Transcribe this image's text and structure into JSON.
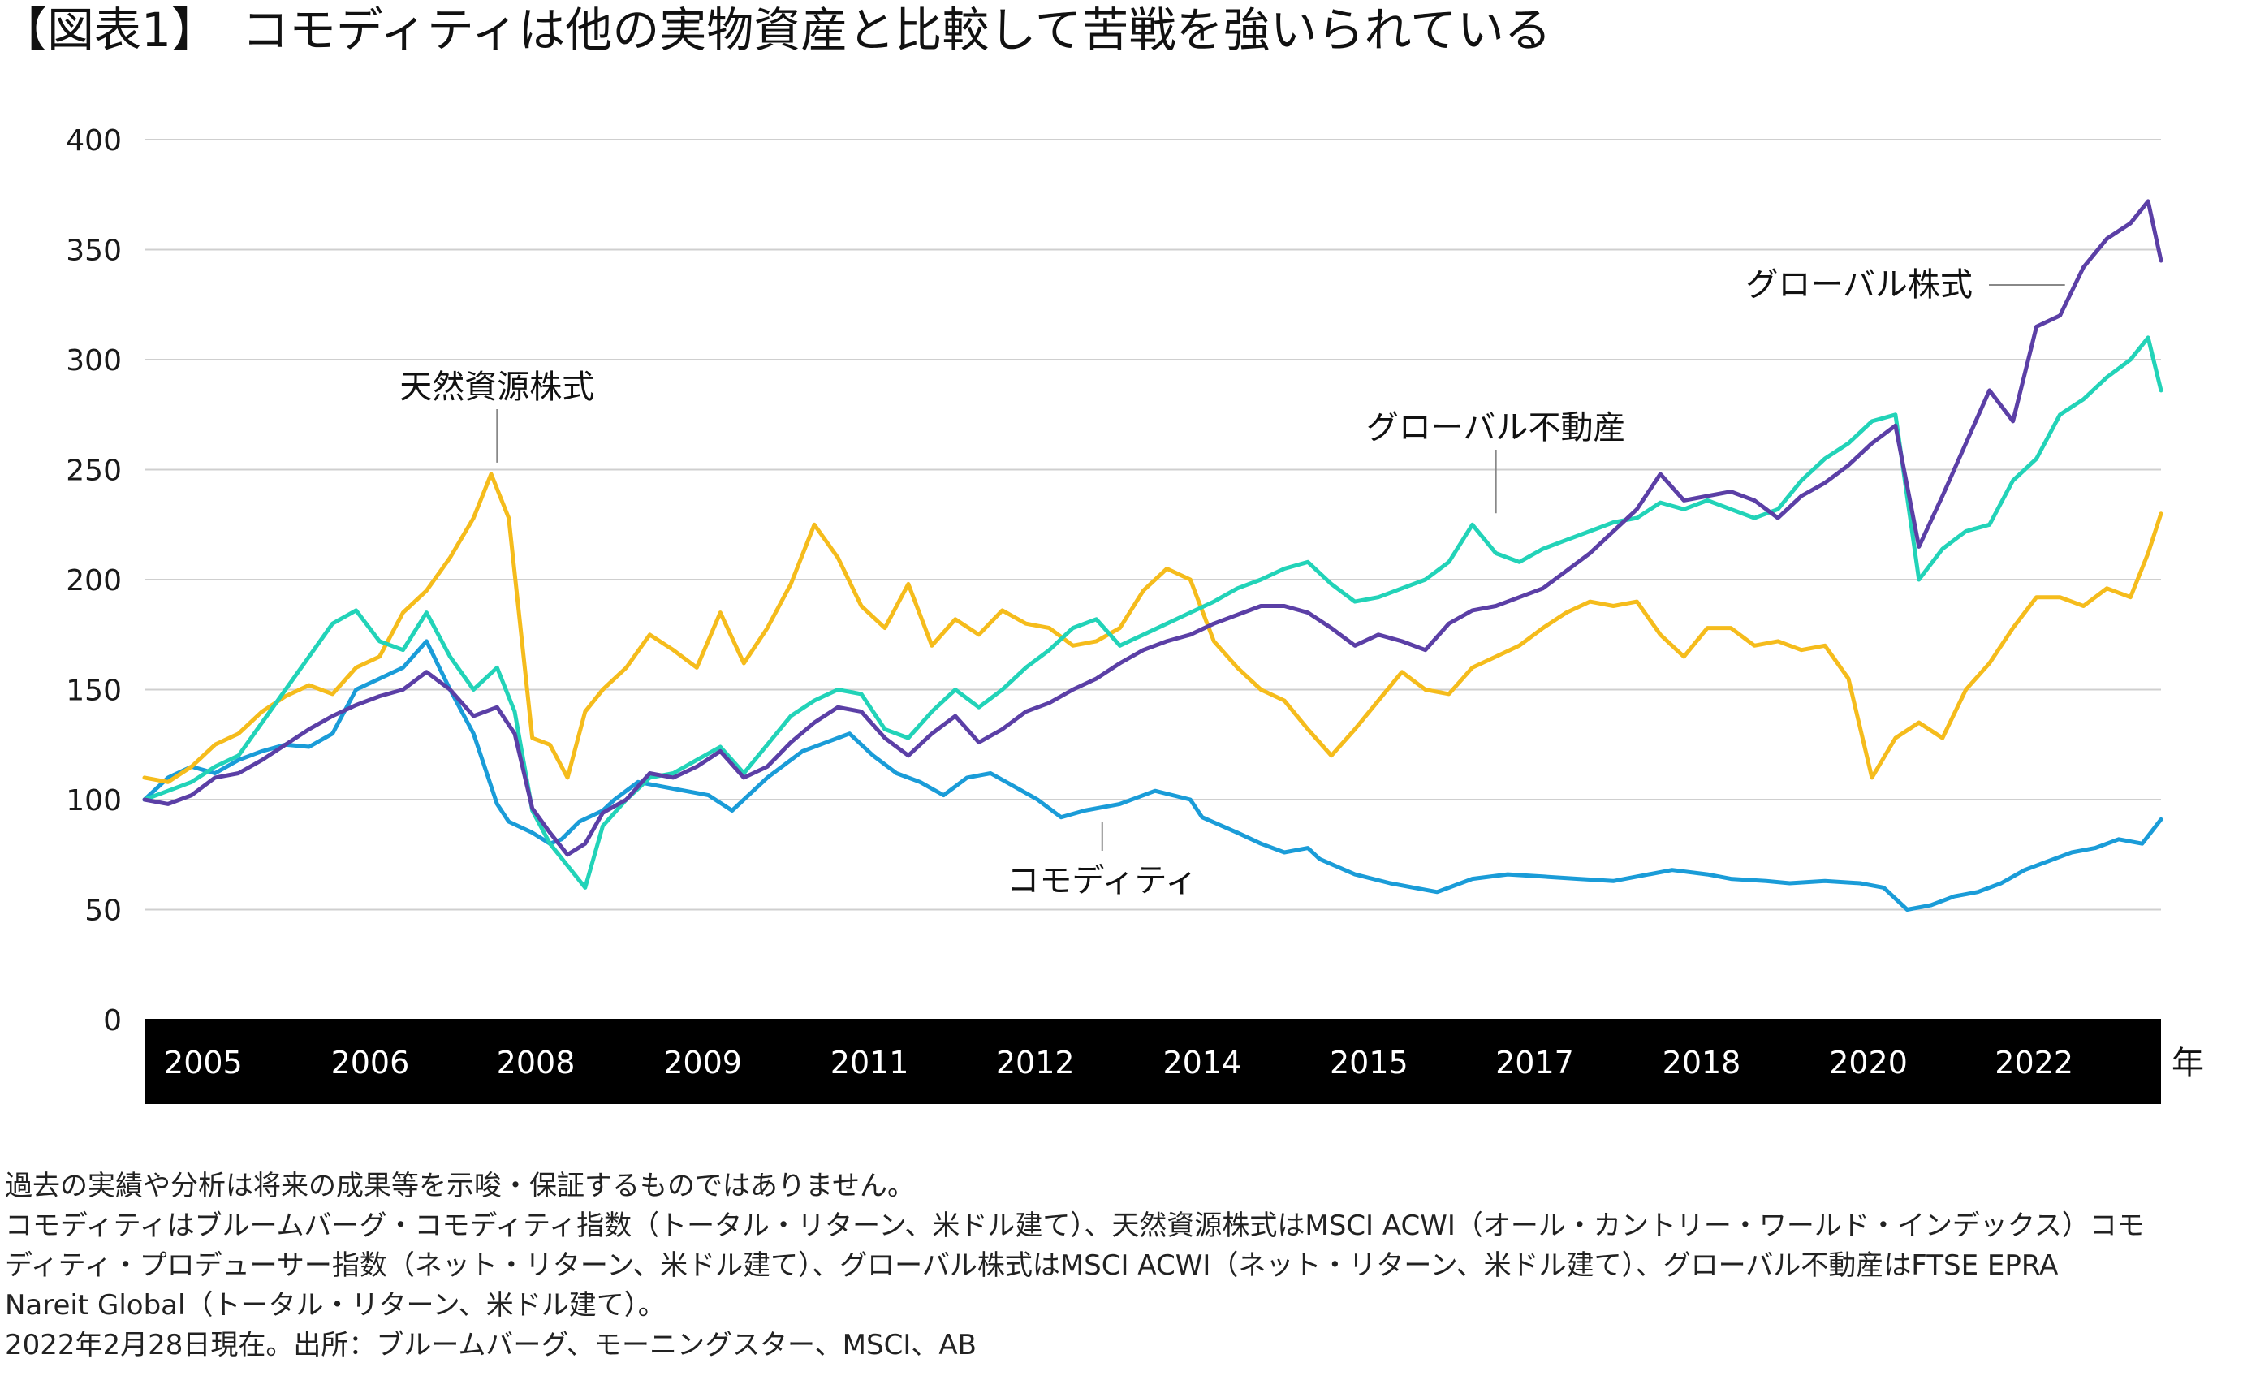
{
  "header": {
    "title": "【図表1】　コモディティは他の実物資産と比較して苦戦を強いられている"
  },
  "notes": [
    "過去の実績や分析は将来の成果等を示唆・保証するものではありません。",
    "コモディティはブルームバーグ・コモディティ指数（トータル・リターン、米ドル建て）、天然資源株式はMSCI ACWI（オール・カントリー・ワールド・インデックス）コモ",
    "ディティ・プロデューサー指数（ネット・リターン、米ドル建て）、グローバル株式はMSCI ACWI（ネット・リターン、米ドル建て）、グローバル不動産はFTSE EPRA",
    "Nareit Global（トータル・リターン、米ドル建て）。",
    "2022年2月28日現在。出所：ブルームバーグ、モーニングスター、MSCI、AB"
  ],
  "colors": {
    "commodity": "#1a9cd8",
    "natural_resources": "#f5bc1c",
    "global_equity": "#5b3fa6",
    "global_reit": "#22d3b8",
    "axis_band": "#000000",
    "gridline": "#cfcfcf"
  },
  "chart_data": {
    "type": "line",
    "title": "コモディティは他の実物資産と比較して苦戦を強いられている",
    "xlabel": "年",
    "ylabel": "",
    "ylim": [
      0,
      400
    ],
    "yticks": [
      0,
      50,
      100,
      150,
      200,
      250,
      300,
      350,
      400
    ],
    "grid": true,
    "x_start": 2005.0,
    "x_end": 2022.16,
    "xtick_labels": [
      "2005",
      "2006",
      "2008",
      "2009",
      "2011",
      "2012",
      "2014",
      "2015",
      "2017",
      "2018",
      "2020",
      "2022"
    ],
    "xtick_positions": [
      2005.5,
      2006.92,
      2008.33,
      2009.75,
      2011.17,
      2012.58,
      2014.0,
      2015.42,
      2016.83,
      2018.25,
      2019.67,
      2021.08
    ],
    "unit_label": "年",
    "series": [
      {
        "name": "コモディティ",
        "color_key": "commodity",
        "x": [
          2005.0,
          2005.2,
          2005.4,
          2005.6,
          2005.8,
          2006.0,
          2006.2,
          2006.4,
          2006.6,
          2006.8,
          2007.0,
          2007.2,
          2007.4,
          2007.6,
          2007.8,
          2008.0,
          2008.1,
          2008.3,
          2008.45,
          2008.55,
          2008.7,
          2008.9,
          2009.0,
          2009.2,
          2009.5,
          2009.8,
          2010.0,
          2010.3,
          2010.6,
          2010.9,
          2011.0,
          2011.2,
          2011.4,
          2011.6,
          2011.8,
          2012.0,
          2012.2,
          2012.4,
          2012.6,
          2012.8,
          2013.0,
          2013.3,
          2013.6,
          2013.9,
          2014.0,
          2014.3,
          2014.5,
          2014.7,
          2014.9,
          2015.0,
          2015.3,
          2015.6,
          2015.8,
          2016.0,
          2016.3,
          2016.6,
          2016.9,
          2017.2,
          2017.5,
          2017.8,
          2018.0,
          2018.3,
          2018.5,
          2018.8,
          2019.0,
          2019.3,
          2019.6,
          2019.8,
          2020.0,
          2020.2,
          2020.4,
          2020.6,
          2020.8,
          2021.0,
          2021.2,
          2021.4,
          2021.6,
          2021.8,
          2022.0,
          2022.16
        ],
        "values": [
          100,
          110,
          115,
          112,
          118,
          122,
          125,
          124,
          130,
          150,
          155,
          160,
          172,
          150,
          130,
          98,
          90,
          85,
          80,
          82,
          90,
          95,
          100,
          108,
          105,
          102,
          95,
          110,
          122,
          128,
          130,
          120,
          112,
          108,
          102,
          110,
          112,
          106,
          100,
          92,
          95,
          98,
          104,
          100,
          92,
          85,
          80,
          76,
          78,
          73,
          66,
          62,
          60,
          58,
          64,
          66,
          65,
          64,
          63,
          66,
          68,
          66,
          64,
          63,
          62,
          63,
          62,
          60,
          50,
          52,
          56,
          58,
          62,
          68,
          72,
          76,
          78,
          82,
          80,
          91
        ]
      },
      {
        "name": "天然資源株式",
        "color_key": "natural_resources",
        "x": [
          2005.0,
          2005.2,
          2005.4,
          2005.6,
          2005.8,
          2006.0,
          2006.2,
          2006.4,
          2006.6,
          2006.8,
          2007.0,
          2007.2,
          2007.4,
          2007.6,
          2007.8,
          2007.95,
          2008.1,
          2008.3,
          2008.45,
          2008.6,
          2008.75,
          2008.9,
          2009.1,
          2009.3,
          2009.5,
          2009.7,
          2009.9,
          2010.1,
          2010.3,
          2010.5,
          2010.7,
          2010.9,
          2011.1,
          2011.3,
          2011.5,
          2011.7,
          2011.9,
          2012.1,
          2012.3,
          2012.5,
          2012.7,
          2012.9,
          2013.1,
          2013.3,
          2013.5,
          2013.7,
          2013.9,
          2014.1,
          2014.3,
          2014.5,
          2014.7,
          2014.9,
          2015.1,
          2015.3,
          2015.5,
          2015.7,
          2015.9,
          2016.1,
          2016.3,
          2016.5,
          2016.7,
          2016.9,
          2017.1,
          2017.3,
          2017.5,
          2017.7,
          2017.9,
          2018.1,
          2018.3,
          2018.5,
          2018.7,
          2018.9,
          2019.1,
          2019.3,
          2019.5,
          2019.7,
          2019.9,
          2020.1,
          2020.3,
          2020.5,
          2020.7,
          2020.9,
          2021.1,
          2021.3,
          2021.5,
          2021.7,
          2021.9,
          2022.05,
          2022.16
        ],
        "values": [
          110,
          108,
          115,
          125,
          130,
          140,
          147,
          152,
          148,
          160,
          165,
          185,
          195,
          210,
          228,
          248,
          228,
          128,
          125,
          110,
          140,
          150,
          160,
          175,
          168,
          160,
          185,
          162,
          178,
          198,
          225,
          210,
          188,
          178,
          198,
          170,
          182,
          175,
          186,
          180,
          178,
          170,
          172,
          178,
          195,
          205,
          200,
          172,
          160,
          150,
          145,
          132,
          120,
          132,
          145,
          158,
          150,
          148,
          160,
          165,
          170,
          178,
          185,
          190,
          188,
          190,
          175,
          165,
          178,
          178,
          170,
          172,
          168,
          170,
          155,
          110,
          128,
          135,
          128,
          150,
          162,
          178,
          192,
          192,
          188,
          196,
          192,
          212,
          230
        ]
      },
      {
        "name": "グローバル株式",
        "color_key": "global_equity",
        "x": [
          2005.0,
          2005.2,
          2005.4,
          2005.6,
          2005.8,
          2006.0,
          2006.2,
          2006.4,
          2006.6,
          2006.8,
          2007.0,
          2007.2,
          2007.4,
          2007.6,
          2007.8,
          2008.0,
          2008.15,
          2008.3,
          2008.45,
          2008.6,
          2008.75,
          2008.9,
          2009.1,
          2009.3,
          2009.5,
          2009.7,
          2009.9,
          2010.1,
          2010.3,
          2010.5,
          2010.7,
          2010.9,
          2011.1,
          2011.3,
          2011.5,
          2011.7,
          2011.9,
          2012.1,
          2012.3,
          2012.5,
          2012.7,
          2012.9,
          2013.1,
          2013.3,
          2013.5,
          2013.7,
          2013.9,
          2014.1,
          2014.3,
          2014.5,
          2014.7,
          2014.9,
          2015.1,
          2015.3,
          2015.5,
          2015.7,
          2015.9,
          2016.1,
          2016.3,
          2016.5,
          2016.7,
          2016.9,
          2017.1,
          2017.3,
          2017.5,
          2017.7,
          2017.9,
          2018.1,
          2018.3,
          2018.5,
          2018.7,
          2018.9,
          2019.1,
          2019.3,
          2019.5,
          2019.7,
          2019.9,
          2020.1,
          2020.3,
          2020.5,
          2020.7,
          2020.9,
          2021.1,
          2021.3,
          2021.5,
          2021.7,
          2021.9,
          2022.05,
          2022.16
        ],
        "values": [
          100,
          98,
          102,
          110,
          112,
          118,
          125,
          132,
          138,
          143,
          147,
          150,
          158,
          150,
          138,
          142,
          130,
          96,
          85,
          75,
          80,
          94,
          100,
          112,
          110,
          115,
          122,
          110,
          115,
          126,
          135,
          142,
          140,
          128,
          120,
          130,
          138,
          126,
          132,
          140,
          144,
          150,
          155,
          162,
          168,
          172,
          175,
          180,
          184,
          188,
          188,
          185,
          178,
          170,
          175,
          172,
          168,
          180,
          186,
          188,
          192,
          196,
          204,
          212,
          222,
          232,
          248,
          236,
          238,
          240,
          236,
          228,
          238,
          244,
          252,
          262,
          270,
          215,
          238,
          262,
          286,
          272,
          315,
          320,
          342,
          355,
          362,
          372,
          345
        ]
      },
      {
        "name": "グローバル不動産",
        "color_key": "global_reit",
        "x": [
          2005.0,
          2005.2,
          2005.4,
          2005.6,
          2005.8,
          2006.0,
          2006.2,
          2006.4,
          2006.6,
          2006.8,
          2007.0,
          2007.2,
          2007.4,
          2007.6,
          2007.8,
          2008.0,
          2008.15,
          2008.3,
          2008.45,
          2008.6,
          2008.75,
          2008.9,
          2009.1,
          2009.3,
          2009.5,
          2009.7,
          2009.9,
          2010.1,
          2010.3,
          2010.5,
          2010.7,
          2010.9,
          2011.1,
          2011.3,
          2011.5,
          2011.7,
          2011.9,
          2012.1,
          2012.3,
          2012.5,
          2012.7,
          2012.9,
          2013.1,
          2013.3,
          2013.5,
          2013.7,
          2013.9,
          2014.1,
          2014.3,
          2014.5,
          2014.7,
          2014.9,
          2015.1,
          2015.3,
          2015.5,
          2015.7,
          2015.9,
          2016.1,
          2016.3,
          2016.5,
          2016.7,
          2016.9,
          2017.1,
          2017.3,
          2017.5,
          2017.7,
          2017.9,
          2018.1,
          2018.3,
          2018.5,
          2018.7,
          2018.9,
          2019.1,
          2019.3,
          2019.5,
          2019.7,
          2019.9,
          2020.1,
          2020.3,
          2020.5,
          2020.7,
          2020.9,
          2021.1,
          2021.3,
          2021.5,
          2021.7,
          2021.9,
          2022.05,
          2022.16
        ],
        "values": [
          100,
          104,
          108,
          115,
          120,
          135,
          150,
          165,
          180,
          186,
          172,
          168,
          185,
          165,
          150,
          160,
          140,
          95,
          80,
          70,
          60,
          88,
          100,
          110,
          112,
          118,
          124,
          112,
          125,
          138,
          145,
          150,
          148,
          132,
          128,
          140,
          150,
          142,
          150,
          160,
          168,
          178,
          182,
          170,
          175,
          180,
          185,
          190,
          196,
          200,
          205,
          208,
          198,
          190,
          192,
          196,
          200,
          208,
          225,
          212,
          208,
          214,
          218,
          222,
          226,
          228,
          235,
          232,
          236,
          232,
          228,
          232,
          245,
          255,
          262,
          272,
          275,
          200,
          214,
          222,
          225,
          245,
          255,
          275,
          282,
          292,
          300,
          310,
          286
        ]
      }
    ],
    "annotations": [
      {
        "text": "天然資源株式",
        "series": "天然資源株式",
        "x": 2008.0,
        "y": 248
      },
      {
        "text": "グローバル不動産",
        "series": "グローバル不動産",
        "x": 2016.5,
        "y": 225
      },
      {
        "text": "グローバル株式",
        "series": "グローバル株式",
        "x": 2021.55,
        "y": 325
      },
      {
        "text": "コモディティ",
        "series": "コモディティ",
        "x": 2013.15,
        "y": 95
      }
    ]
  }
}
